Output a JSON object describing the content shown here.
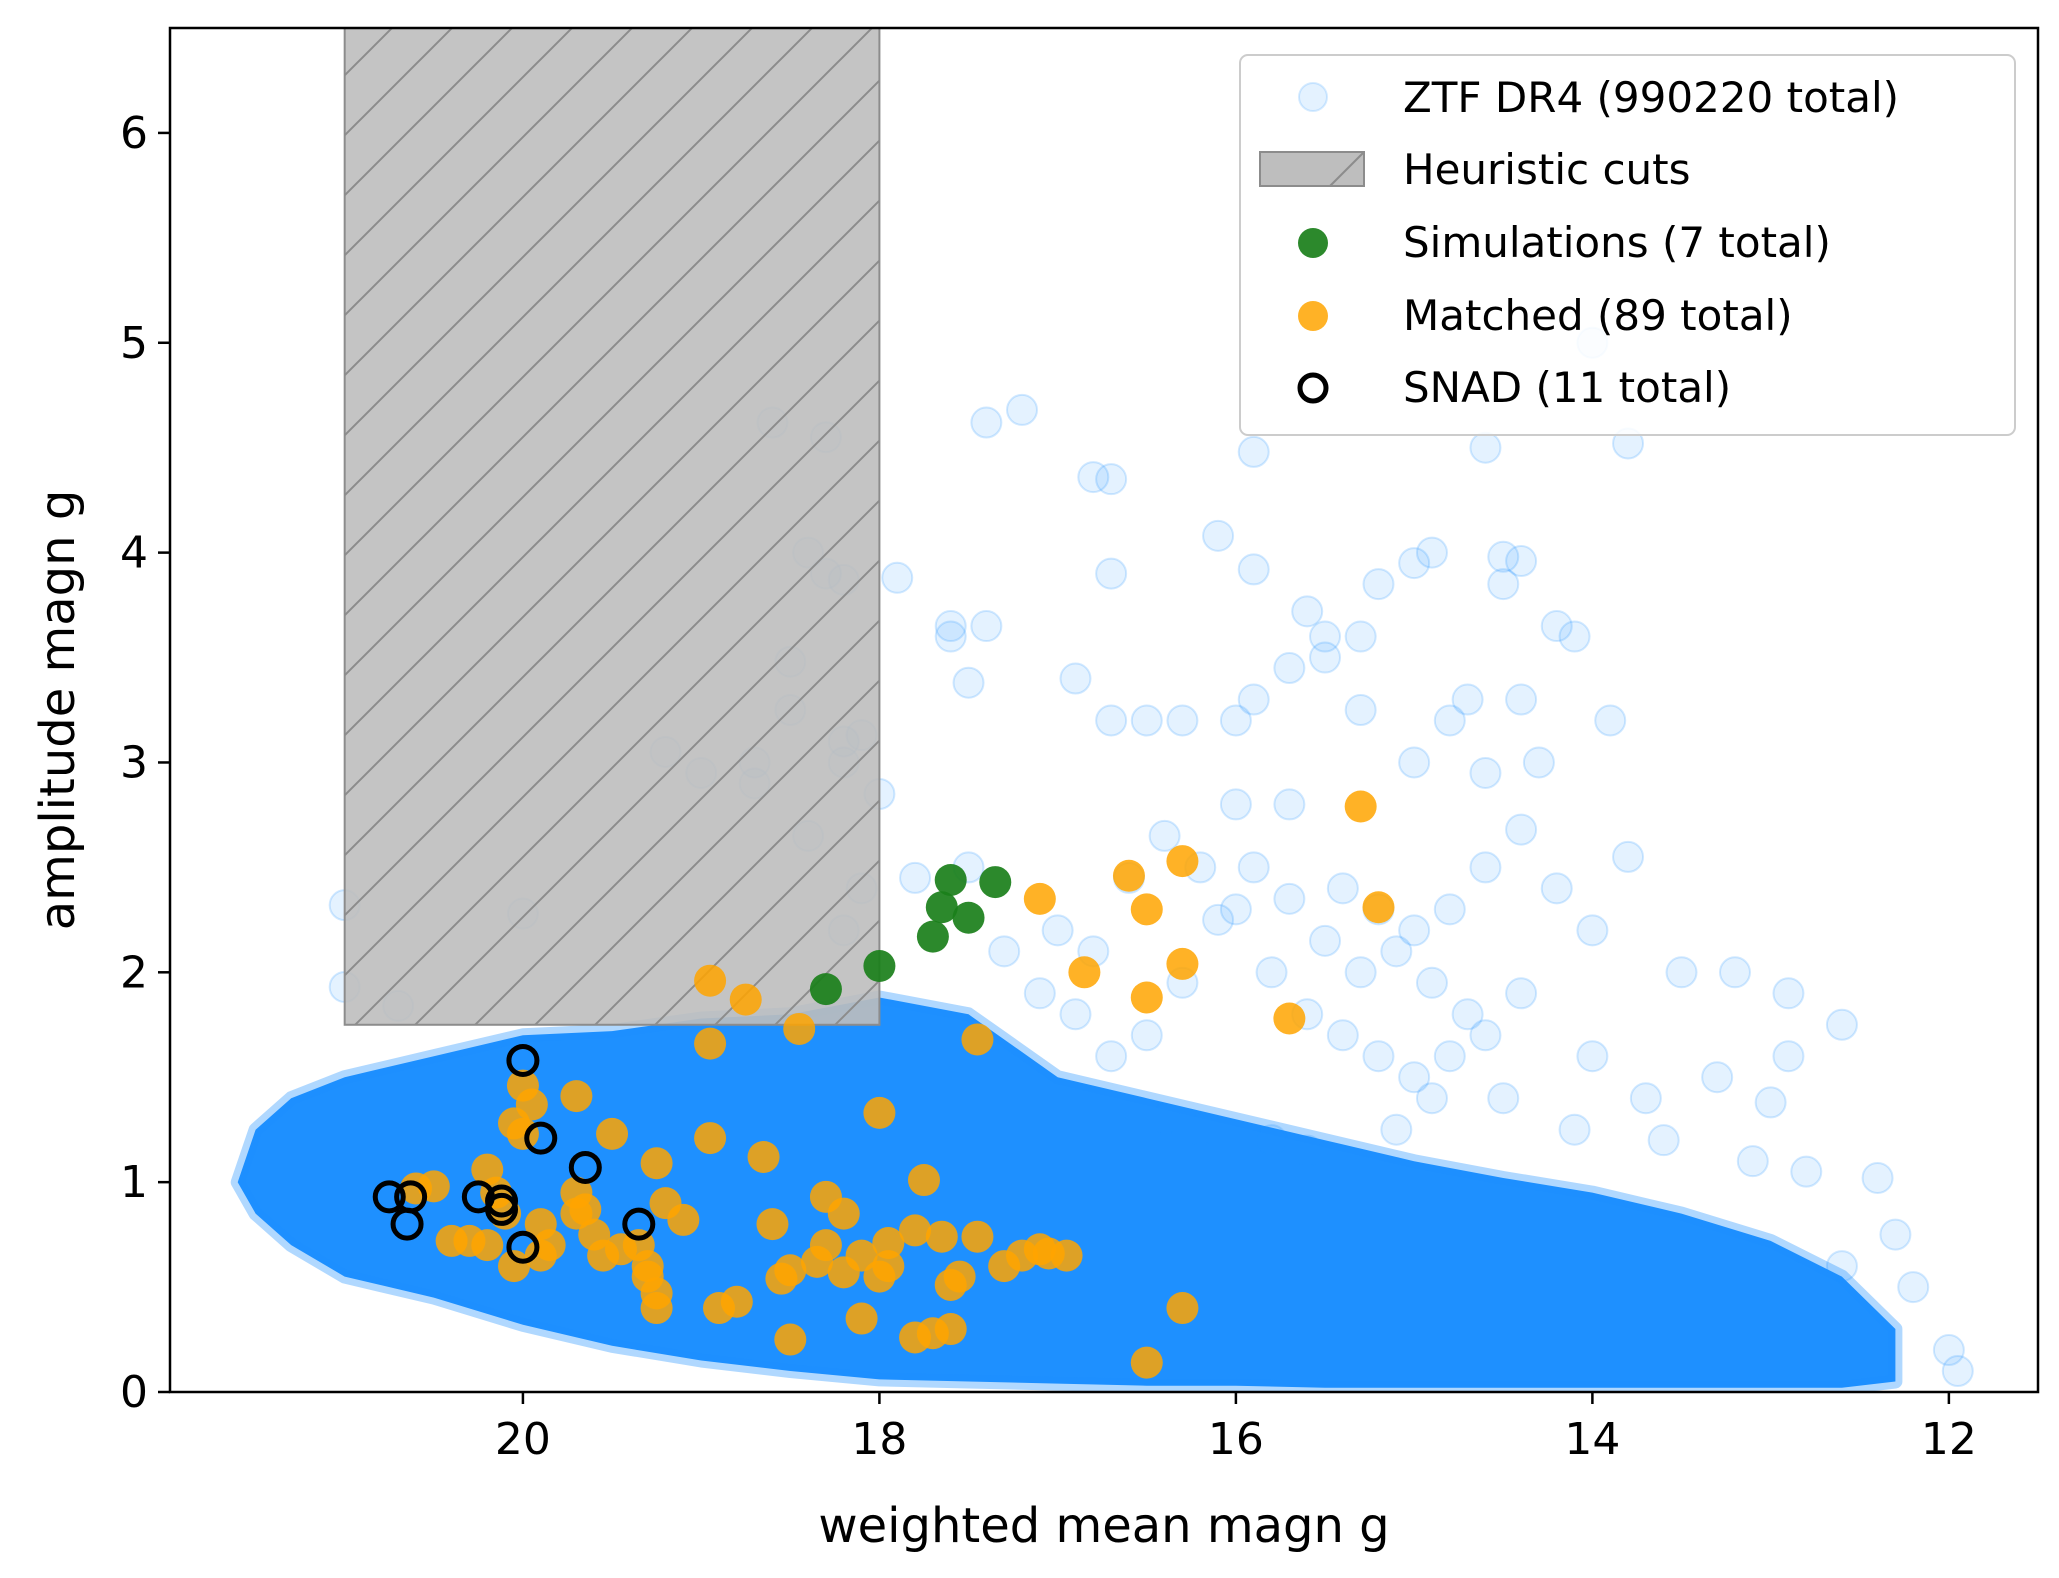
{
  "chart_data": {
    "type": "scatter",
    "xlabel": "weighted mean magn g",
    "ylabel": "amplitude magn g",
    "xlim": [
      21.98,
      11.5
    ],
    "ylim": [
      0,
      6.5
    ],
    "x_inverted": true,
    "x_ticks": [
      20,
      18,
      16,
      14,
      12
    ],
    "x_tick_labels": [
      "20",
      "18",
      "16",
      "14",
      "12"
    ],
    "y_ticks": [
      0,
      1,
      2,
      3,
      4,
      5,
      6
    ],
    "y_tick_labels": [
      "0",
      "1",
      "2",
      "3",
      "4",
      "5",
      "6"
    ],
    "grid": false,
    "legend_position": "top-right",
    "colors": {
      "ztf": "#1e90ff",
      "cuts_fill": "#bebebe",
      "cuts_edge": "#8c8c8c",
      "simulations": "#1a7f1a",
      "matched": "#ffa500",
      "snad_edge": "#000000"
    },
    "shaded_region": {
      "name": "Heuristic cuts",
      "x_range": [
        21.0,
        18.0
      ],
      "y_range": [
        1.75,
        6.5
      ],
      "hatch": "/"
    },
    "series": [
      {
        "name": "ZTF DR4 (990220 total)",
        "style": "faint-circle",
        "dense_envelope": {
          "x": [
            21.6,
            21.5,
            21.3,
            21.0,
            20.5,
            20.0,
            19.5,
            19.0,
            18.5,
            18.0,
            17.5,
            17.0,
            16.5,
            16.0,
            15.5,
            15.0,
            14.5,
            14.0,
            13.5,
            13.0,
            12.6,
            12.3,
            12.3,
            12.6,
            13.0,
            13.5,
            14.0,
            14.5,
            15.0,
            15.5,
            16.0,
            16.5,
            17.0,
            17.5,
            18.0,
            18.5,
            19.0,
            19.5,
            20.0,
            20.5,
            21.0,
            21.3,
            21.5
          ],
          "y_upper_and_lower_outline": [
            1.0,
            1.25,
            1.4,
            1.5,
            1.6,
            1.7,
            1.72,
            1.78,
            1.8,
            1.88,
            1.8,
            1.5,
            1.4,
            1.3,
            1.2,
            1.1,
            1.02,
            0.95,
            0.85,
            0.72,
            0.55,
            0.3,
            0.05,
            0.02,
            0.02,
            0.02,
            0.02,
            0.02,
            0.02,
            0.02,
            0.03,
            0.03,
            0.04,
            0.05,
            0.06,
            0.1,
            0.15,
            0.22,
            0.32,
            0.45,
            0.55,
            0.7,
            0.85
          ]
        },
        "scatter_points": [
          [
            21.0,
            2.32
          ],
          [
            21.0,
            1.93
          ],
          [
            20.7,
            1.84
          ],
          [
            20.0,
            2.28
          ],
          [
            19.2,
            3.05
          ],
          [
            19.0,
            2.95
          ],
          [
            18.7,
            3.0
          ],
          [
            18.7,
            2.9
          ],
          [
            18.5,
            3.48
          ],
          [
            18.5,
            3.25
          ],
          [
            18.2,
            3.1
          ],
          [
            18.1,
            3.13
          ],
          [
            18.2,
            3.0
          ],
          [
            18.4,
            2.65
          ],
          [
            18.2,
            2.2
          ],
          [
            18.0,
            2.85
          ],
          [
            18.6,
            4.62
          ],
          [
            18.3,
            4.55
          ],
          [
            18.4,
            4.0
          ],
          [
            18.3,
            3.9
          ],
          [
            18.2,
            3.87
          ],
          [
            17.9,
            3.88
          ],
          [
            17.6,
            3.6
          ],
          [
            17.6,
            3.65
          ],
          [
            17.4,
            3.65
          ],
          [
            17.5,
            3.38
          ],
          [
            17.2,
            4.68
          ],
          [
            17.4,
            4.62
          ],
          [
            16.8,
            4.36
          ],
          [
            16.7,
            4.35
          ],
          [
            16.9,
            3.4
          ],
          [
            16.7,
            3.2
          ],
          [
            16.5,
            3.2
          ],
          [
            16.3,
            3.2
          ],
          [
            16.0,
            3.2
          ],
          [
            15.9,
            3.3
          ],
          [
            16.7,
            3.9
          ],
          [
            16.1,
            4.08
          ],
          [
            15.9,
            3.92
          ],
          [
            15.6,
            3.72
          ],
          [
            15.5,
            3.6
          ],
          [
            15.3,
            3.6
          ],
          [
            15.2,
            3.85
          ],
          [
            15.0,
            3.95
          ],
          [
            14.9,
            4.0
          ],
          [
            14.5,
            3.98
          ],
          [
            14.4,
            3.96
          ],
          [
            14.5,
            3.85
          ],
          [
            15.9,
            4.48
          ],
          [
            15.7,
            3.45
          ],
          [
            15.5,
            3.5
          ],
          [
            15.3,
            3.25
          ],
          [
            15.0,
            3.0
          ],
          [
            14.8,
            3.2
          ],
          [
            14.7,
            3.3
          ],
          [
            14.6,
            2.95
          ],
          [
            14.3,
            3.0
          ],
          [
            14.1,
            3.6
          ],
          [
            14.2,
            3.65
          ],
          [
            14.4,
            3.3
          ],
          [
            13.9,
            3.2
          ],
          [
            14.0,
            5.0
          ],
          [
            14.6,
            4.5
          ],
          [
            13.8,
            4.52
          ],
          [
            16.0,
            2.8
          ],
          [
            15.7,
            2.8
          ],
          [
            15.4,
            2.4
          ],
          [
            15.2,
            2.3
          ],
          [
            15.0,
            2.2
          ],
          [
            14.8,
            2.3
          ],
          [
            14.6,
            2.5
          ],
          [
            14.4,
            2.68
          ],
          [
            14.2,
            2.4
          ],
          [
            14.0,
            2.2
          ],
          [
            13.8,
            2.55
          ],
          [
            13.5,
            2.0
          ],
          [
            13.2,
            2.0
          ],
          [
            12.9,
            1.9
          ],
          [
            12.6,
            1.75
          ],
          [
            12.9,
            1.6
          ],
          [
            13.0,
            1.38
          ],
          [
            13.3,
            1.5
          ],
          [
            13.7,
            1.4
          ],
          [
            14.0,
            1.6
          ],
          [
            14.4,
            1.9
          ],
          [
            14.6,
            1.7
          ],
          [
            17.0,
            2.2
          ],
          [
            16.8,
            2.1
          ],
          [
            16.6,
            2.45
          ],
          [
            16.4,
            2.65
          ],
          [
            16.2,
            2.5
          ],
          [
            16.0,
            2.3
          ],
          [
            15.8,
            2.0
          ],
          [
            15.6,
            1.8
          ],
          [
            15.4,
            1.7
          ],
          [
            15.2,
            1.6
          ],
          [
            15.0,
            1.5
          ],
          [
            14.8,
            1.6
          ],
          [
            14.7,
            1.8
          ],
          [
            14.9,
            1.95
          ],
          [
            15.1,
            2.1
          ],
          [
            15.3,
            2.0
          ],
          [
            15.5,
            2.15
          ],
          [
            15.7,
            2.35
          ],
          [
            15.9,
            2.5
          ],
          [
            16.1,
            2.25
          ],
          [
            16.3,
            1.95
          ],
          [
            16.5,
            1.7
          ],
          [
            16.7,
            1.6
          ],
          [
            16.9,
            1.8
          ],
          [
            17.1,
            1.9
          ],
          [
            17.3,
            2.1
          ],
          [
            17.5,
            2.5
          ],
          [
            17.8,
            2.45
          ],
          [
            18.1,
            2.4
          ],
          [
            16.4,
            1.3
          ],
          [
            16.2,
            1.25
          ],
          [
            15.8,
            1.2
          ],
          [
            15.6,
            1.15
          ],
          [
            15.1,
            1.25
          ],
          [
            14.9,
            1.4
          ],
          [
            14.5,
            1.4
          ],
          [
            14.1,
            1.25
          ],
          [
            13.6,
            1.2
          ],
          [
            13.1,
            1.1
          ],
          [
            12.8,
            1.05
          ],
          [
            12.4,
            1.02
          ],
          [
            12.3,
            0.75
          ],
          [
            12.2,
            0.5
          ],
          [
            12.0,
            0.2
          ],
          [
            11.95,
            0.1
          ],
          [
            12.6,
            0.6
          ],
          [
            12.7,
            0.45
          ]
        ]
      },
      {
        "name": "Heuristic cuts",
        "style": "hatched-rectangle"
      },
      {
        "name": "Simulations (7 total)",
        "style": "filled-circle",
        "points": [
          [
            18.3,
            1.92
          ],
          [
            18.0,
            2.03
          ],
          [
            17.7,
            2.17
          ],
          [
            17.65,
            2.31
          ],
          [
            17.6,
            2.44
          ],
          [
            17.5,
            2.26
          ],
          [
            17.35,
            2.43
          ]
        ]
      },
      {
        "name": "Matched (89 total)",
        "style": "filled-circle",
        "points": [
          [
            18.95,
            1.96
          ],
          [
            18.75,
            1.87
          ],
          [
            18.45,
            1.73
          ],
          [
            18.95,
            1.66
          ],
          [
            18.0,
            1.33
          ],
          [
            17.1,
            2.35
          ],
          [
            16.6,
            2.46
          ],
          [
            16.3,
            2.53
          ],
          [
            16.5,
            2.3
          ],
          [
            16.3,
            2.04
          ],
          [
            16.85,
            2.0
          ],
          [
            16.5,
            1.88
          ],
          [
            17.45,
            1.68
          ],
          [
            15.7,
            1.78
          ],
          [
            15.3,
            2.79
          ],
          [
            15.2,
            2.31
          ],
          [
            20.0,
            1.46
          ],
          [
            19.95,
            1.37
          ],
          [
            19.7,
            1.41
          ],
          [
            19.5,
            1.23
          ],
          [
            20.05,
            1.28
          ],
          [
            20.0,
            1.23
          ],
          [
            19.25,
            1.09
          ],
          [
            18.95,
            1.21
          ],
          [
            18.65,
            1.12
          ],
          [
            17.75,
            1.01
          ],
          [
            20.2,
            1.06
          ],
          [
            19.7,
            0.95
          ],
          [
            20.6,
            0.97
          ],
          [
            20.5,
            0.98
          ],
          [
            20.3,
            0.72
          ],
          [
            20.05,
            0.6
          ],
          [
            19.9,
            0.8
          ],
          [
            19.7,
            0.85
          ],
          [
            19.65,
            0.87
          ],
          [
            19.55,
            0.65
          ],
          [
            19.45,
            0.68
          ],
          [
            19.35,
            0.7
          ],
          [
            19.3,
            0.6
          ],
          [
            19.25,
            0.47
          ],
          [
            19.25,
            0.4
          ],
          [
            19.1,
            0.82
          ],
          [
            19.3,
            0.55
          ],
          [
            18.9,
            0.4
          ],
          [
            18.8,
            0.43
          ],
          [
            18.55,
            0.54
          ],
          [
            18.6,
            0.8
          ],
          [
            18.5,
            0.25
          ],
          [
            18.3,
            0.93
          ],
          [
            18.3,
            0.7
          ],
          [
            18.2,
            0.85
          ],
          [
            18.2,
            0.57
          ],
          [
            18.1,
            0.65
          ],
          [
            17.95,
            0.71
          ],
          [
            17.95,
            0.6
          ],
          [
            18.1,
            0.35
          ],
          [
            17.8,
            0.77
          ],
          [
            17.65,
            0.74
          ],
          [
            17.45,
            0.74
          ],
          [
            17.6,
            0.51
          ],
          [
            17.6,
            0.3
          ],
          [
            17.7,
            0.28
          ],
          [
            17.8,
            0.26
          ],
          [
            17.3,
            0.6
          ],
          [
            17.2,
            0.65
          ],
          [
            17.1,
            0.68
          ],
          [
            17.05,
            0.66
          ],
          [
            16.95,
            0.65
          ],
          [
            16.5,
            0.14
          ],
          [
            16.3,
            0.4
          ],
          [
            18.5,
            0.58
          ],
          [
            19.2,
            0.9
          ],
          [
            20.1,
            0.85
          ],
          [
            20.2,
            0.7
          ],
          [
            19.9,
            0.65
          ],
          [
            19.85,
            0.7
          ],
          [
            20.4,
            0.72
          ],
          [
            20.15,
            0.95
          ],
          [
            19.6,
            0.75
          ],
          [
            18.35,
            0.62
          ],
          [
            18.0,
            0.55
          ],
          [
            17.55,
            0.55
          ]
        ]
      },
      {
        "name": "SNAD (11 total)",
        "style": "open-circle",
        "points": [
          [
            20.0,
            1.58
          ],
          [
            19.9,
            1.21
          ],
          [
            19.65,
            1.07
          ],
          [
            20.75,
            0.93
          ],
          [
            20.63,
            0.93
          ],
          [
            20.65,
            0.8
          ],
          [
            20.25,
            0.93
          ],
          [
            20.12,
            0.91
          ],
          [
            20.12,
            0.87
          ],
          [
            20.0,
            0.69
          ],
          [
            19.35,
            0.8
          ]
        ]
      }
    ]
  }
}
